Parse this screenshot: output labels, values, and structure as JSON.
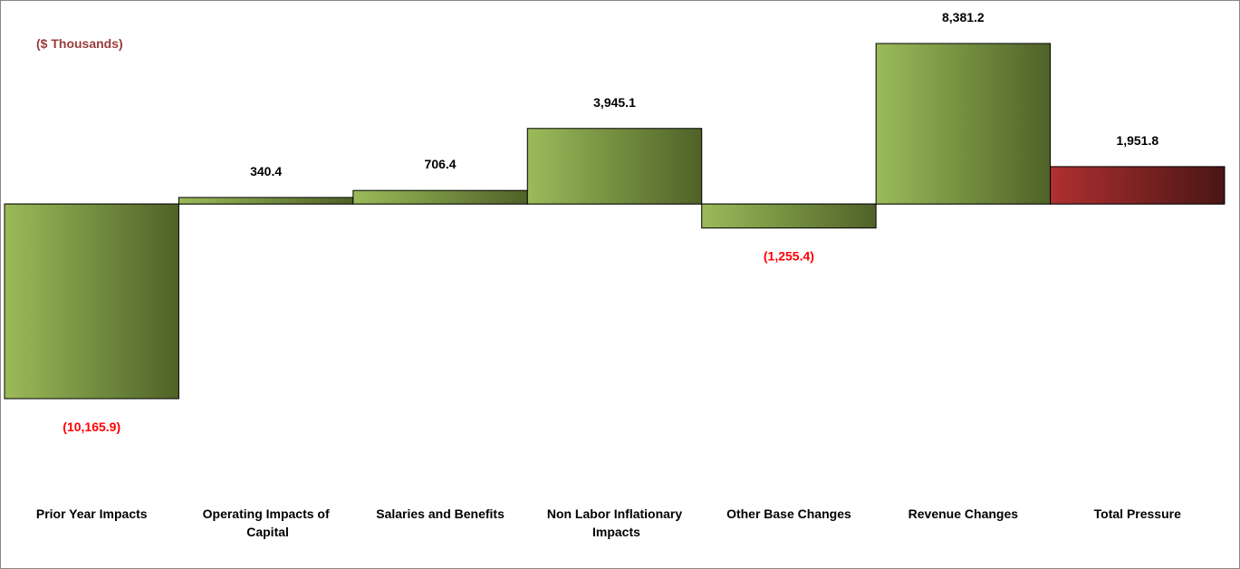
{
  "chart_data": {
    "type": "bar",
    "subtitle": "($ Thousands)",
    "categories": [
      "Prior Year Impacts",
      "Operating Impacts of Capital",
      "Salaries and Benefits",
      "Non Labor Inflationary Impacts",
      "Other Base Changes",
      "Revenue Changes",
      "Total Pressure"
    ],
    "values": [
      -10165.9,
      340.4,
      706.4,
      3945.1,
      -1255.4,
      8381.2,
      1951.8
    ],
    "value_labels": [
      "(10,165.9)",
      "340.4",
      "706.4",
      "3,945.1",
      "(1,255.4)",
      "8,381.2",
      "1,951.8"
    ],
    "colors": [
      "#9bbb59",
      "#9bbb59",
      "#9bbb59",
      "#9bbb59",
      "#9bbb59",
      "#9bbb59",
      "#b03030"
    ],
    "negative_label_color": "#ff0000"
  }
}
